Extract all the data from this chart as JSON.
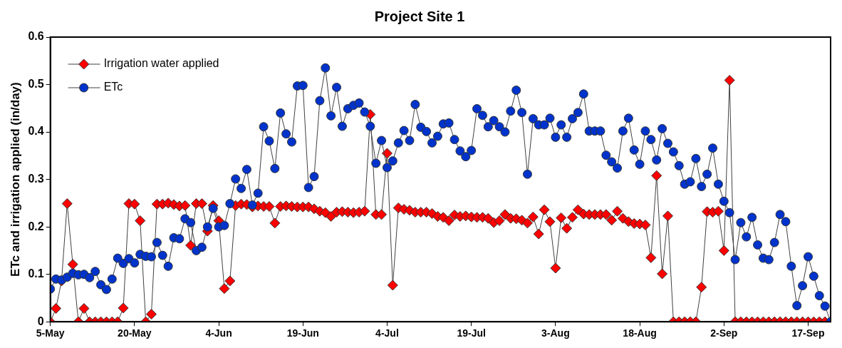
{
  "chart_data": {
    "type": "line",
    "title": "Project Site 1",
    "ylabel": "ETc and irrigation applied (in/day)",
    "x": [
      "--05-05",
      "--05-06",
      "--05-07",
      "--05-08",
      "--05-09",
      "--05-10",
      "--05-11",
      "--05-12",
      "--05-13",
      "--05-14",
      "--05-15",
      "--05-16",
      "--05-17",
      "--05-18",
      "--05-19",
      "--05-20",
      "--05-21",
      "--05-22",
      "--05-23",
      "--05-24",
      "--05-25",
      "--05-26",
      "--05-27",
      "--05-28",
      "--05-29",
      "--05-30",
      "--05-31",
      "--06-01",
      "--06-02",
      "--06-03",
      "--06-04",
      "--06-05",
      "--06-06",
      "--06-07",
      "--06-08",
      "--06-09",
      "--06-10",
      "--06-11",
      "--06-12",
      "--06-13",
      "--06-14",
      "--06-15",
      "--06-16",
      "--06-17",
      "--06-18",
      "--06-19",
      "--06-20",
      "--06-21",
      "--06-22",
      "--06-23",
      "--06-24",
      "--06-25",
      "--06-26",
      "--06-27",
      "--06-28",
      "--06-29",
      "--06-30",
      "--07-01",
      "--07-02",
      "--07-03",
      "--07-04",
      "--07-05",
      "--07-06",
      "--07-07",
      "--07-08",
      "--07-09",
      "--07-10",
      "--07-11",
      "--07-12",
      "--07-13",
      "--07-14",
      "--07-15",
      "--07-16",
      "--07-17",
      "--07-18",
      "--07-19",
      "--07-20",
      "--07-21",
      "--07-22",
      "--07-23",
      "--07-24",
      "--07-25",
      "--07-26",
      "--07-27",
      "--07-28",
      "--07-29",
      "--07-30",
      "--07-31",
      "--08-01",
      "--08-02",
      "--08-03",
      "--08-04",
      "--08-05",
      "--08-06",
      "--08-07",
      "--08-08",
      "--08-09",
      "--08-10",
      "--08-11",
      "--08-12",
      "--08-13",
      "--08-14",
      "--08-15",
      "--08-16",
      "--08-17",
      "--08-18",
      "--08-19",
      "--08-20",
      "--08-21",
      "--08-22",
      "--08-23",
      "--08-24",
      "--08-25",
      "--08-26",
      "--08-27",
      "--08-28",
      "--08-29",
      "--08-30",
      "--08-31",
      "--09-01",
      "--09-02",
      "--09-03",
      "--09-04",
      "--09-05",
      "--09-06",
      "--09-07",
      "--09-08",
      "--09-09",
      "--09-10",
      "--09-11",
      "--09-12",
      "--09-13",
      "--09-14",
      "--09-15",
      "--09-16",
      "--09-17",
      "--09-18",
      "--09-19",
      "--09-20",
      "--09-21"
    ],
    "series": [
      {
        "name": "Irrigation water applied",
        "color": "#ff0000",
        "marker": "diamond",
        "values": [
          0,
          0.028,
          0.086,
          0.249,
          0.121,
          0,
          0.028,
          0,
          0,
          0,
          0,
          0,
          0,
          0.029,
          0.249,
          0.248,
          0.213,
          0,
          0.016,
          0.248,
          0.248,
          0.25,
          0.247,
          0.244,
          0.245,
          0.161,
          0.249,
          0.249,
          0.191,
          0.245,
          0.213,
          0.07,
          0.086,
          0.245,
          0.248,
          0.247,
          0.242,
          0.244,
          0.243,
          0.243,
          0.208,
          0.243,
          0.244,
          0.243,
          0.242,
          0.242,
          0.242,
          0.238,
          0.233,
          0.23,
          0.222,
          0.231,
          0.232,
          0.231,
          0.23,
          0.231,
          0.233,
          0.437,
          0.226,
          0.226,
          0.355,
          0.077,
          0.24,
          0.237,
          0.235,
          0.231,
          0.231,
          0.231,
          0.228,
          0.222,
          0.22,
          0.213,
          0.225,
          0.222,
          0.223,
          0.221,
          0.22,
          0.22,
          0.218,
          0.209,
          0.213,
          0.226,
          0.218,
          0.217,
          0.214,
          0.208,
          0.221,
          0.185,
          0.236,
          0.211,
          0.113,
          0.219,
          0.197,
          0.22,
          0.236,
          0.227,
          0.226,
          0.226,
          0.226,
          0.226,
          0.214,
          0.233,
          0.218,
          0.211,
          0.207,
          0.206,
          0.204,
          0.135,
          0.308,
          0.101,
          0.223,
          0,
          0,
          0,
          0,
          0,
          0.073,
          0.232,
          0.231,
          0.233,
          0.15,
          0.509,
          0,
          0,
          0,
          0,
          0,
          0,
          0,
          0,
          0,
          0,
          0,
          0,
          0,
          0,
          0,
          0,
          0,
          0
        ]
      },
      {
        "name": "ETc",
        "color": "#0033cc",
        "marker": "circle",
        "values": [
          0.069,
          0.09,
          0.088,
          0.094,
          0.102,
          0.099,
          0.1,
          0.093,
          0.106,
          0.078,
          0.068,
          0.09,
          0.134,
          0.123,
          0.133,
          0.124,
          0.142,
          0.138,
          0.137,
          0.167,
          0.14,
          0.117,
          0.177,
          0.175,
          0.217,
          0.209,
          0.15,
          0.157,
          0.2,
          0.239,
          0.2,
          0.203,
          0.249,
          0.301,
          0.281,
          0.321,
          0.246,
          0.271,
          0.411,
          0.381,
          0.323,
          0.44,
          0.396,
          0.379,
          0.497,
          0.498,
          0.283,
          0.306,
          0.466,
          0.535,
          0.434,
          0.494,
          0.412,
          0.449,
          0.456,
          0.461,
          0.442,
          0.412,
          0.334,
          0.382,
          0.325,
          0.339,
          0.377,
          0.403,
          0.382,
          0.458,
          0.41,
          0.401,
          0.377,
          0.391,
          0.417,
          0.419,
          0.384,
          0.36,
          0.348,
          0.361,
          0.449,
          0.435,
          0.411,
          0.424,
          0.411,
          0.4,
          0.444,
          0.488,
          0.441,
          0.311,
          0.428,
          0.415,
          0.415,
          0.429,
          0.389,
          0.415,
          0.389,
          0.428,
          0.441,
          0.48,
          0.402,
          0.402,
          0.402,
          0.351,
          0.337,
          0.324,
          0.402,
          0.429,
          0.362,
          0.332,
          0.402,
          0.384,
          0.341,
          0.407,
          0.376,
          0.358,
          0.329,
          0.29,
          0.295,
          0.344,
          0.285,
          0.311,
          0.366,
          0.29,
          0.254,
          0.23,
          0.131,
          0.209,
          0.179,
          0.22,
          0.162,
          0.134,
          0.131,
          0.167,
          0.226,
          0.211,
          0.117,
          0.034,
          0.076,
          0.137,
          0.096,
          0.055,
          0.033,
          0
        ]
      }
    ],
    "xlim": [
      "--05-05",
      "--09-21"
    ],
    "xticks": [
      {
        "value": "--05-05",
        "label": "5-May"
      },
      {
        "value": "--05-20",
        "label": "20-May"
      },
      {
        "value": "--06-04",
        "label": "4-Jun"
      },
      {
        "value": "--06-19",
        "label": "19-Jun"
      },
      {
        "value": "--07-04",
        "label": "4-Jul"
      },
      {
        "value": "--07-19",
        "label": "19-Jul"
      },
      {
        "value": "--08-03",
        "label": "3-Aug"
      },
      {
        "value": "--08-18",
        "label": "18-Aug"
      },
      {
        "value": "--09-02",
        "label": "2-Sep"
      },
      {
        "value": "--09-17",
        "label": "17-Sep"
      }
    ],
    "ylim": [
      0,
      0.6
    ],
    "yticks": [
      0,
      0.1,
      0.2,
      0.3,
      0.4,
      0.5,
      0.6
    ],
    "legend": "top left",
    "line_style": "solid"
  }
}
